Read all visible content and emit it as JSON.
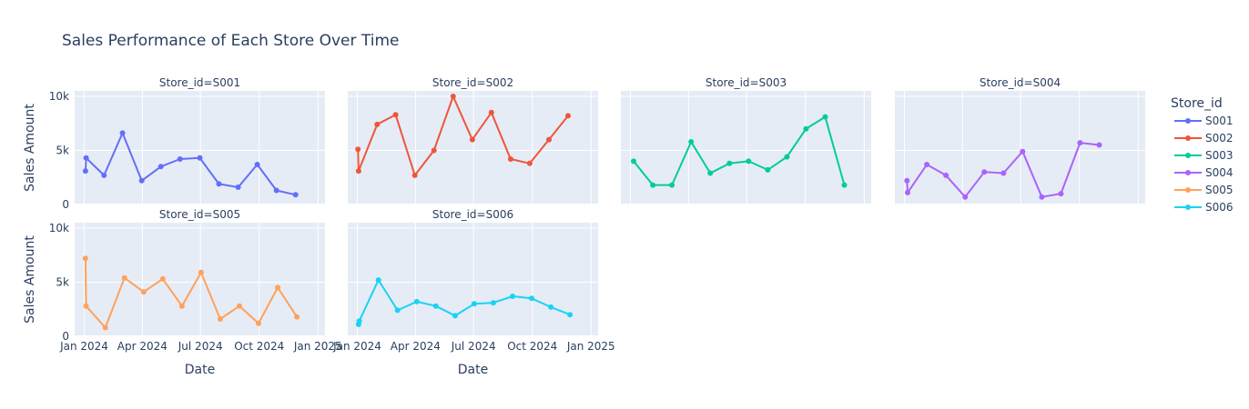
{
  "chart_data": {
    "type": "line",
    "title": "Sales Performance of Each Store Over Time",
    "xlabel": "Date",
    "ylabel": "Sales Amount",
    "ylim": [
      0,
      10500
    ],
    "xlim": [
      "2023-12-17",
      "2025-01-12"
    ],
    "x_ticks": [
      "2024-01-01",
      "2024-04-01",
      "2024-07-01",
      "2024-10-01",
      "2025-01-01"
    ],
    "x_tick_labels": [
      "Jan 2024",
      "Apr 2024",
      "Jul 2024",
      "Oct 2024",
      "Jan 2025"
    ],
    "y_ticks": [
      0,
      5000,
      10000
    ],
    "y_tick_labels": [
      "0",
      "5k",
      "10k"
    ],
    "legend_title": "Store_id",
    "legend_position": "right",
    "series": [
      {
        "name": "S001",
        "facet_label": "Store_id=S001",
        "color": "#636efa",
        "x": [
          "2024-01-03",
          "2024-01-04",
          "2024-02-01",
          "2024-03-01",
          "2024-03-31",
          "2024-04-30",
          "2024-05-30",
          "2024-06-30",
          "2024-07-30",
          "2024-08-29",
          "2024-09-28",
          "2024-10-28",
          "2024-11-27",
          "2024-12-26"
        ],
        "y": [
          3100,
          4300,
          2700,
          6600,
          2200,
          3500,
          4200,
          4300,
          1900,
          1600,
          3700,
          1300,
          900,
          null
        ]
      },
      {
        "name": "S002",
        "facet_label": "Store_id=S002",
        "color": "#ef553b",
        "x": [
          "2024-01-02",
          "2024-01-03",
          "2024-02-01",
          "2024-03-01",
          "2024-03-31",
          "2024-04-30",
          "2024-05-30",
          "2024-06-29",
          "2024-07-29",
          "2024-08-28",
          "2024-09-27",
          "2024-10-27",
          "2024-11-26",
          "2024-12-26"
        ],
        "y": [
          5100,
          3100,
          7400,
          8300,
          2700,
          5000,
          10000,
          6000,
          8500,
          4200,
          3800,
          6000,
          8200,
          null
        ]
      },
      {
        "name": "S003",
        "facet_label": "Store_id=S003",
        "color": "#00cc96",
        "x": [
          "2024-01-06",
          "2024-02-05",
          "2024-03-06",
          "2024-04-05",
          "2024-05-05",
          "2024-06-04",
          "2024-07-04",
          "2024-08-03",
          "2024-09-02",
          "2024-10-02",
          "2024-11-01",
          "2024-12-01"
        ],
        "y": [
          4000,
          1800,
          1800,
          5800,
          2900,
          3800,
          4000,
          3200,
          4400,
          7000,
          8100,
          1800
        ]
      },
      {
        "name": "S004",
        "facet_label": "Store_id=S004",
        "color": "#ab63fa",
        "x": [
          "2024-01-05",
          "2024-01-06",
          "2024-02-05",
          "2024-03-06",
          "2024-04-05",
          "2024-05-05",
          "2024-06-04",
          "2024-07-04",
          "2024-08-03",
          "2024-09-02",
          "2024-10-02",
          "2024-11-01",
          "2024-12-01"
        ],
        "y": [
          2200,
          1100,
          3700,
          2700,
          700,
          3000,
          2900,
          4900,
          700,
          1000,
          5700,
          5500,
          null
        ]
      },
      {
        "name": "S005",
        "facet_label": "Store_id=S005",
        "color": "#ffa15a",
        "x": [
          "2024-01-03",
          "2024-01-04",
          "2024-02-03",
          "2024-03-04",
          "2024-04-03",
          "2024-05-03",
          "2024-06-02",
          "2024-07-02",
          "2024-08-01",
          "2024-08-31",
          "2024-09-30",
          "2024-10-30",
          "2024-11-29"
        ],
        "y": [
          7200,
          2800,
          800,
          5400,
          4100,
          5300,
          2800,
          5900,
          1600,
          2800,
          1200,
          4500,
          1800
        ]
      },
      {
        "name": "S006",
        "facet_label": "Store_id=S006",
        "color": "#19d3f3",
        "x": [
          "2024-01-03",
          "2024-01-04",
          "2024-02-03",
          "2024-03-04",
          "2024-04-03",
          "2024-05-03",
          "2024-06-02",
          "2024-07-02",
          "2024-08-01",
          "2024-08-31",
          "2024-09-30",
          "2024-10-30",
          "2024-11-29"
        ],
        "y": [
          1100,
          1400,
          5200,
          2400,
          3200,
          2800,
          1900,
          3000,
          3100,
          3700,
          3500,
          2700,
          2000
        ]
      }
    ]
  }
}
